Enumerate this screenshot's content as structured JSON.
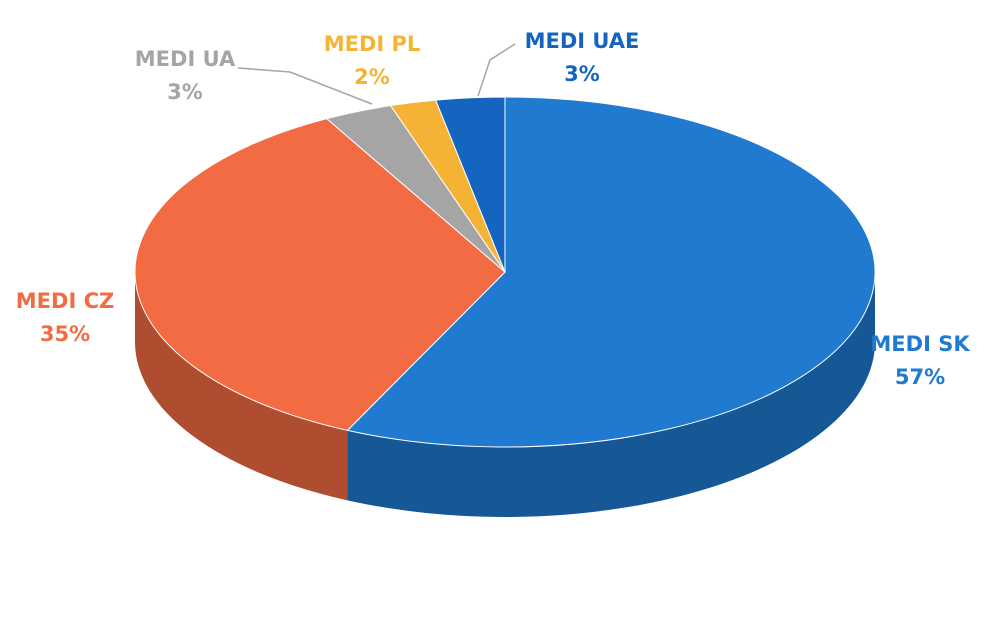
{
  "chart_data": {
    "type": "pie",
    "categories": [
      "MEDI SK",
      "MEDI CZ",
      "MEDI UA",
      "MEDI PL",
      "MEDI UAE"
    ],
    "values": [
      57,
      35,
      3,
      2,
      3
    ],
    "value_labels": [
      "57%",
      "35%",
      "3%",
      "2%",
      "3%"
    ],
    "colors": [
      "#1f7ad0",
      "#f26b43",
      "#a5a5a5",
      "#f5b335",
      "#1565c0"
    ]
  }
}
